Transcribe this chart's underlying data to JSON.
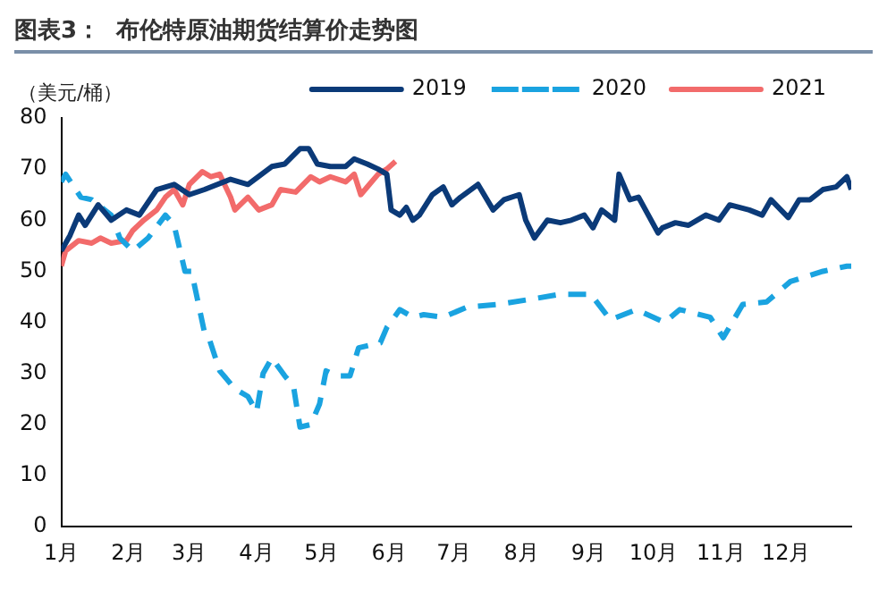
{
  "chart_data": {
    "type": "line",
    "title": "图表3：  布伦特原油期货结算价走势图",
    "ylabel": "（美元/桶）",
    "xlim": [
      "--01-01",
      "--12-31"
    ],
    "xticks": [
      {
        "value": "--01-01",
        "label": "1月"
      },
      {
        "value": "--02-01",
        "label": "2月"
      },
      {
        "value": "--03-01",
        "label": "3月"
      },
      {
        "value": "--04-01",
        "label": "4月"
      },
      {
        "value": "--05-01",
        "label": "5月"
      },
      {
        "value": "--06-01",
        "label": "6月"
      },
      {
        "value": "--07-01",
        "label": "7月"
      },
      {
        "value": "--08-01",
        "label": "8月"
      },
      {
        "value": "--09-01",
        "label": "9月"
      },
      {
        "value": "--10-01",
        "label": "10月"
      },
      {
        "value": "--11-01",
        "label": "11月"
      },
      {
        "value": "--12-01",
        "label": "12月"
      }
    ],
    "ylim": [
      0,
      80
    ],
    "yticks": [
      0,
      10,
      20,
      30,
      40,
      50,
      60,
      70,
      80
    ],
    "grid": false,
    "legend": "top",
    "marker": "none",
    "series": [
      {
        "name": "2019",
        "color": "#0b3a78",
        "line_style": "solid",
        "x": [
          "--01-01",
          "--01-05",
          "--01-09",
          "--01-12",
          "--01-18",
          "--01-24",
          "--01-31",
          "--02-06",
          "--02-14",
          "--02-22",
          "--03-01",
          "--03-08",
          "--03-20",
          "--03-28",
          "--04-08",
          "--04-14",
          "--04-21",
          "--04-25",
          "--04-29",
          "--05-05",
          "--05-12",
          "--05-16",
          "--05-22",
          "--05-27",
          "--05-31",
          "--06-02",
          "--06-06",
          "--06-09",
          "--06-12",
          "--06-15",
          "--06-21",
          "--06-26",
          "--06-30",
          "--07-04",
          "--07-12",
          "--07-19",
          "--07-24",
          "--07-31",
          "--08-03",
          "--08-07",
          "--08-13",
          "--08-19",
          "--08-24",
          "--08-30",
          "--09-03",
          "--09-07",
          "--09-13",
          "--09-15",
          "--09-20",
          "--09-24",
          "--10-03",
          "--10-05",
          "--10-11",
          "--10-17",
          "--10-25",
          "--10-31",
          "--11-05",
          "--11-14",
          "--11-20",
          "--11-24",
          "--12-02",
          "--12-07",
          "--12-12",
          "--12-18",
          "--12-24",
          "--12-29",
          "--12-31"
        ],
        "values": [
          54,
          57,
          61,
          59,
          63,
          60,
          62,
          61,
          66,
          67,
          65,
          66,
          68,
          67,
          70.5,
          71,
          74,
          74,
          71,
          70.5,
          70.5,
          72,
          71,
          70,
          69,
          62,
          61,
          62.5,
          60,
          61,
          65,
          66.5,
          63,
          64.5,
          67,
          62,
          64,
          65,
          60,
          56.5,
          60,
          59.5,
          60,
          61,
          58.5,
          62,
          60,
          69,
          64,
          64.5,
          57.5,
          58.5,
          59.5,
          59,
          61,
          60,
          63,
          62,
          61,
          64,
          60.5,
          64,
          64,
          66,
          66.5,
          68.5,
          66
        ]
      },
      {
        "name": "2020",
        "color": "#1aa3e0",
        "line_style": "dashed",
        "x": [
          "--01-01",
          "--01-03",
          "--01-10",
          "--01-15",
          "--01-24",
          "--01-28",
          "--02-03",
          "--02-10",
          "--02-18",
          "--02-22",
          "--02-27",
          "--03-02",
          "--03-08",
          "--03-10",
          "--03-15",
          "--03-22",
          "--03-28",
          "--04-01",
          "--04-04",
          "--04-08",
          "--04-14",
          "--04-18",
          "--04-21",
          "--04-26",
          "--04-30",
          "--05-03",
          "--05-08",
          "--05-14",
          "--05-18",
          "--05-28",
          "--05-31",
          "--06-06",
          "--06-12",
          "--06-17",
          "--06-26",
          "--07-07",
          "--07-21",
          "--08-05",
          "--08-19",
          "--09-02",
          "--09-11",
          "--09-23",
          "--10-06",
          "--10-13",
          "--10-27",
          "--11-02",
          "--11-11",
          "--11-22",
          "--12-03",
          "--12-18",
          "--12-29",
          "--12-31"
        ],
        "values": [
          67.5,
          69,
          64.5,
          64,
          61,
          56.5,
          54,
          56.5,
          61,
          59,
          50,
          50,
          38,
          37,
          30.5,
          27,
          25.5,
          22.5,
          30,
          33,
          29.5,
          27.5,
          19.5,
          20,
          24,
          30.5,
          29.5,
          29.5,
          35,
          36,
          39,
          42.5,
          41,
          41.5,
          41,
          43,
          43.5,
          44.5,
          45.5,
          45.5,
          40.5,
          42.5,
          40,
          42.5,
          41,
          37,
          43.5,
          44,
          48,
          50,
          51,
          51
        ]
      },
      {
        "name": "2021",
        "color": "#f26b6b",
        "line_style": "solid",
        "x": [
          "--01-01",
          "--01-03",
          "--01-09",
          "--01-15",
          "--01-19",
          "--01-24",
          "--01-31",
          "--02-03",
          "--02-08",
          "--02-14",
          "--02-18",
          "--02-22",
          "--02-26",
          "--03-01",
          "--03-07",
          "--03-11",
          "--03-15",
          "--03-20",
          "--03-22",
          "--03-28",
          "--04-02",
          "--04-08",
          "--04-12",
          "--04-19",
          "--04-26",
          "--04-30",
          "--05-05",
          "--05-12",
          "--05-16",
          "--05-19",
          "--05-23",
          "--05-27",
          "--05-31",
          "--06-04"
        ],
        "values": [
          51,
          54,
          56,
          55.5,
          56.5,
          55.5,
          56,
          58,
          60,
          62,
          64.5,
          66,
          63,
          67,
          69.5,
          68.5,
          69,
          64.5,
          62,
          64.5,
          62,
          63,
          66,
          65.5,
          68.5,
          67.5,
          68.5,
          67.5,
          69,
          65,
          67,
          69,
          70,
          71.5
        ]
      }
    ]
  }
}
